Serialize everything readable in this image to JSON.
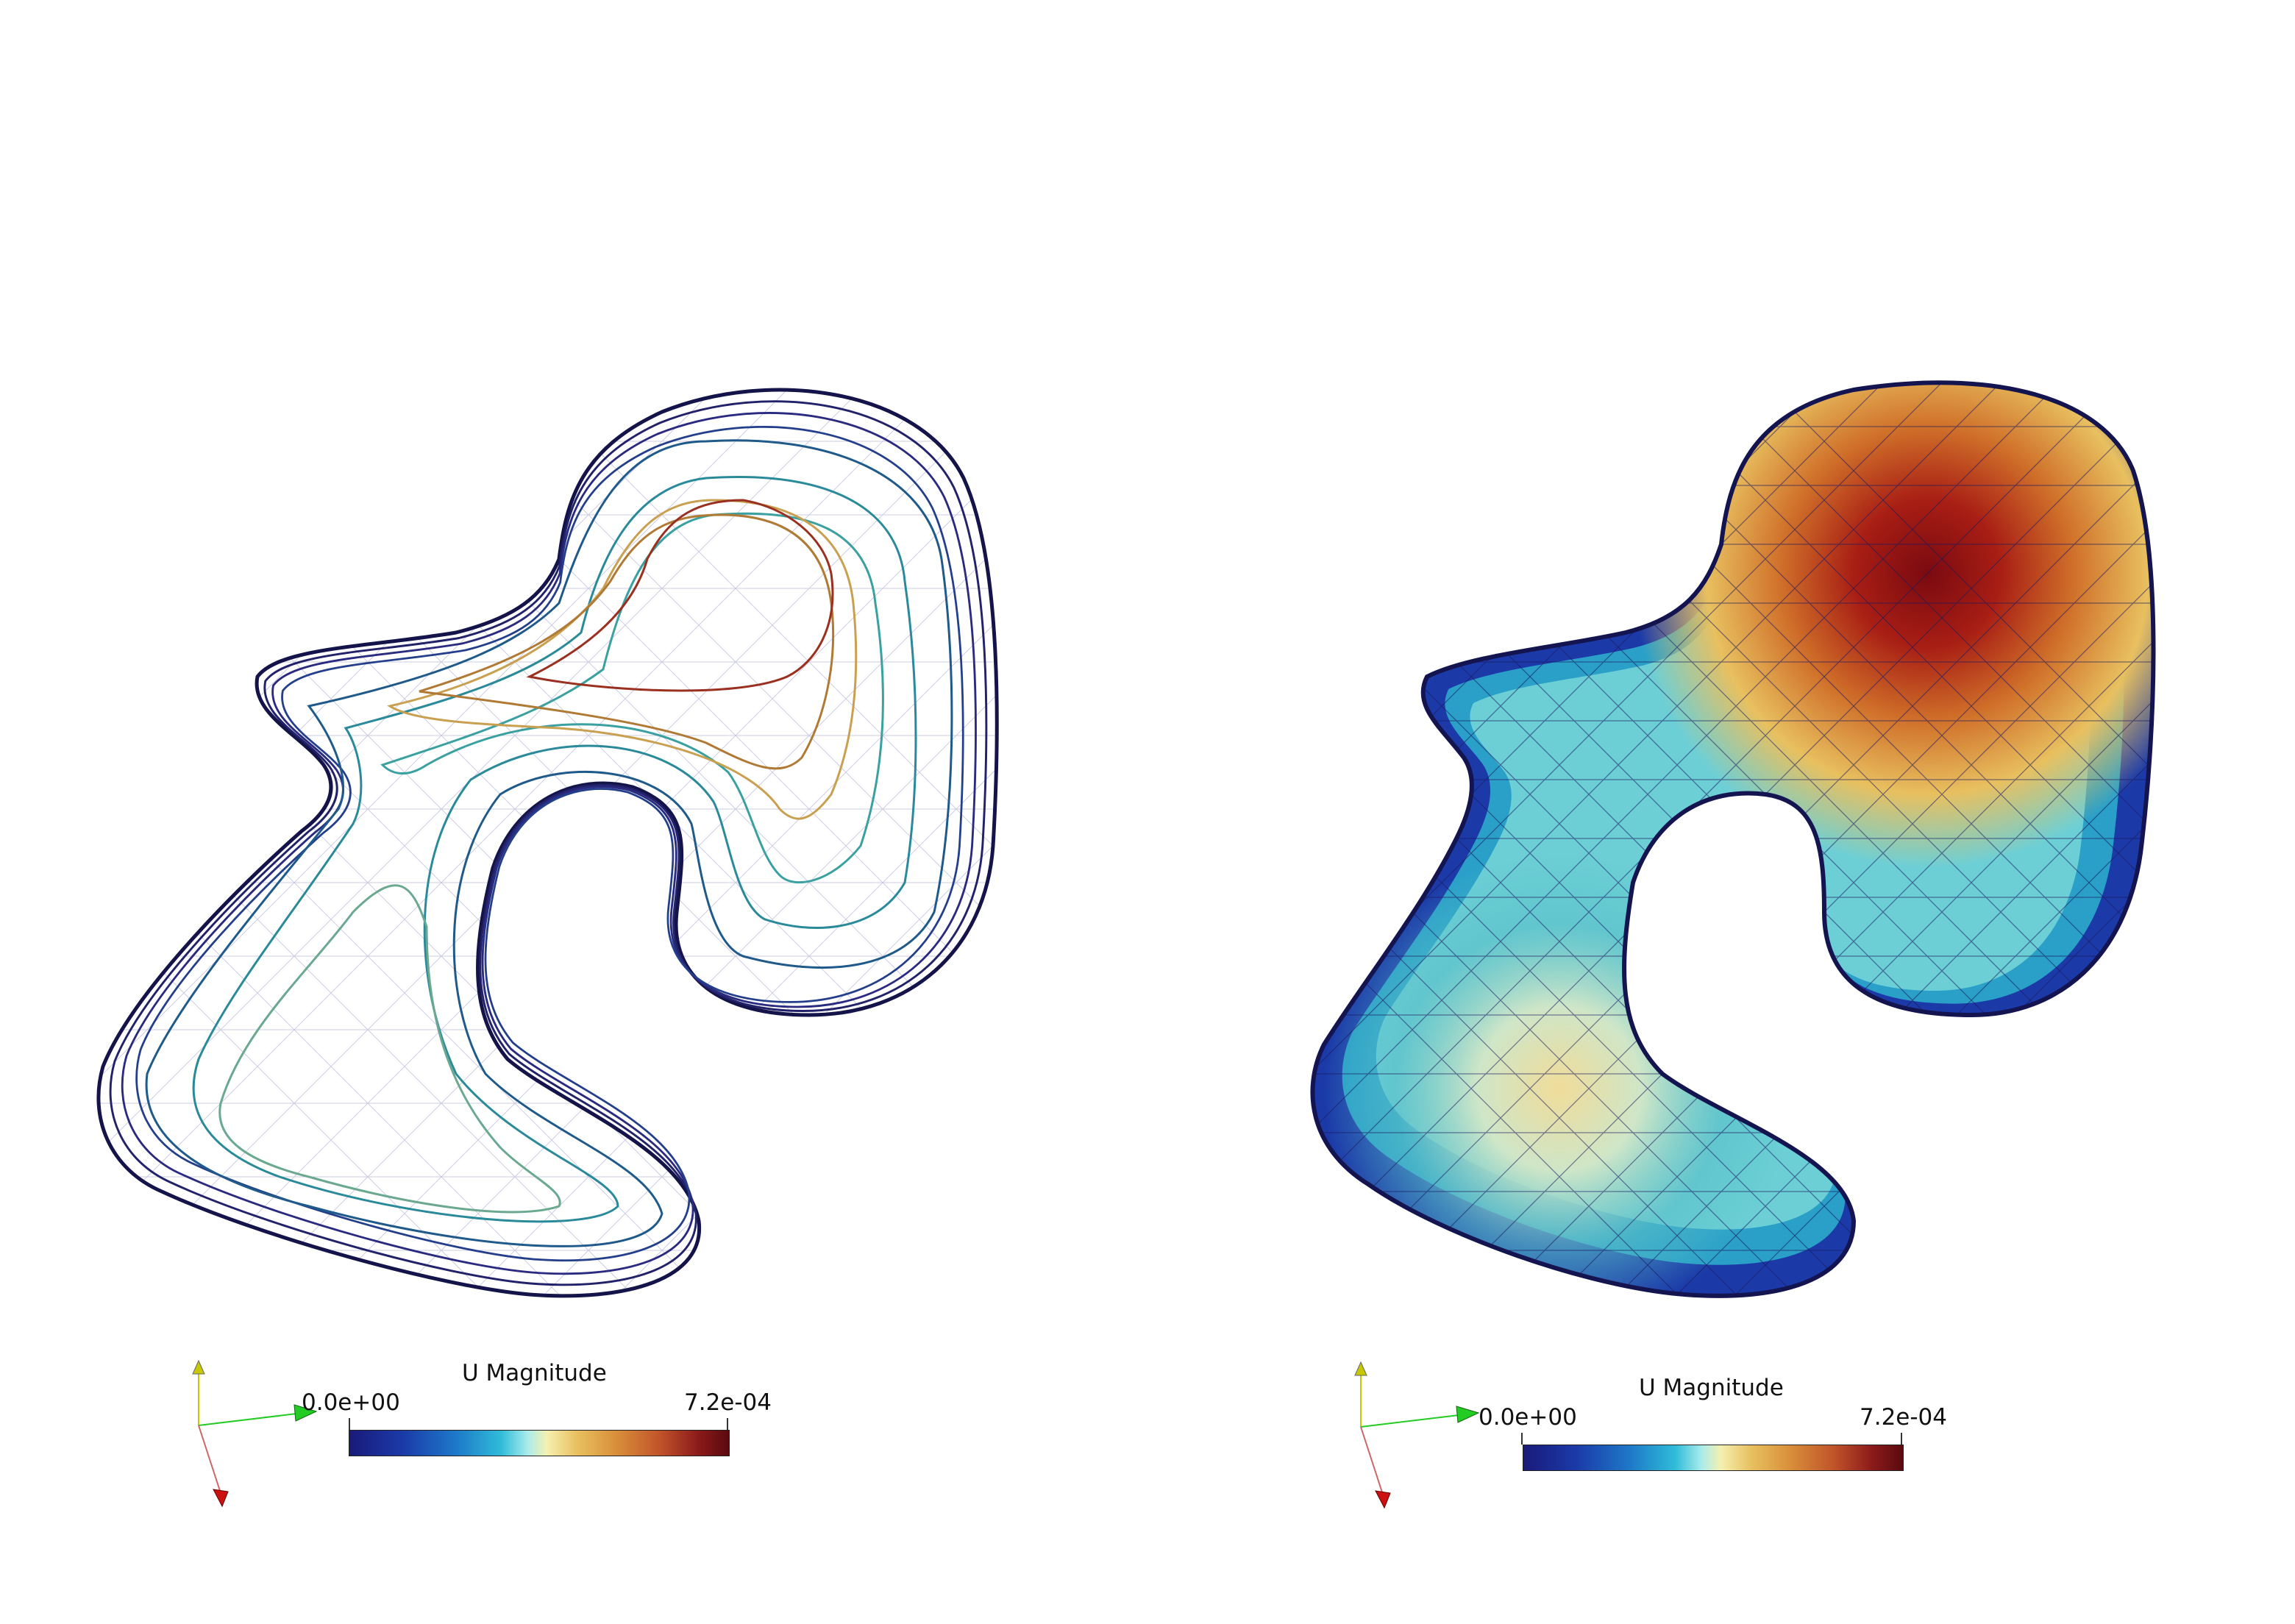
{
  "panels": [
    {
      "id": "left",
      "style": "contour-lines-with-wireframe",
      "colorbar": {
        "title": "U Magnitude",
        "min_label": "0.0e+00",
        "max_label": "7.2e-04"
      }
    },
    {
      "id": "right",
      "style": "surface-with-wireframe",
      "colorbar": {
        "title": "U Magnitude",
        "min_label": "0.0e+00",
        "max_label": "7.2e-04"
      }
    }
  ],
  "colormap": [
    "#1a1a7a",
    "#1b3aa8",
    "#1e78c8",
    "#2fbcd8",
    "#a9ecea",
    "#f5f0b0",
    "#e8c060",
    "#d9903a",
    "#c0522a",
    "#8a1a1a",
    "#5a0a10"
  ],
  "axes_triad": {
    "y_color": "#c8c800",
    "x_color": "#22cc22",
    "z_color": "#cc1111"
  }
}
